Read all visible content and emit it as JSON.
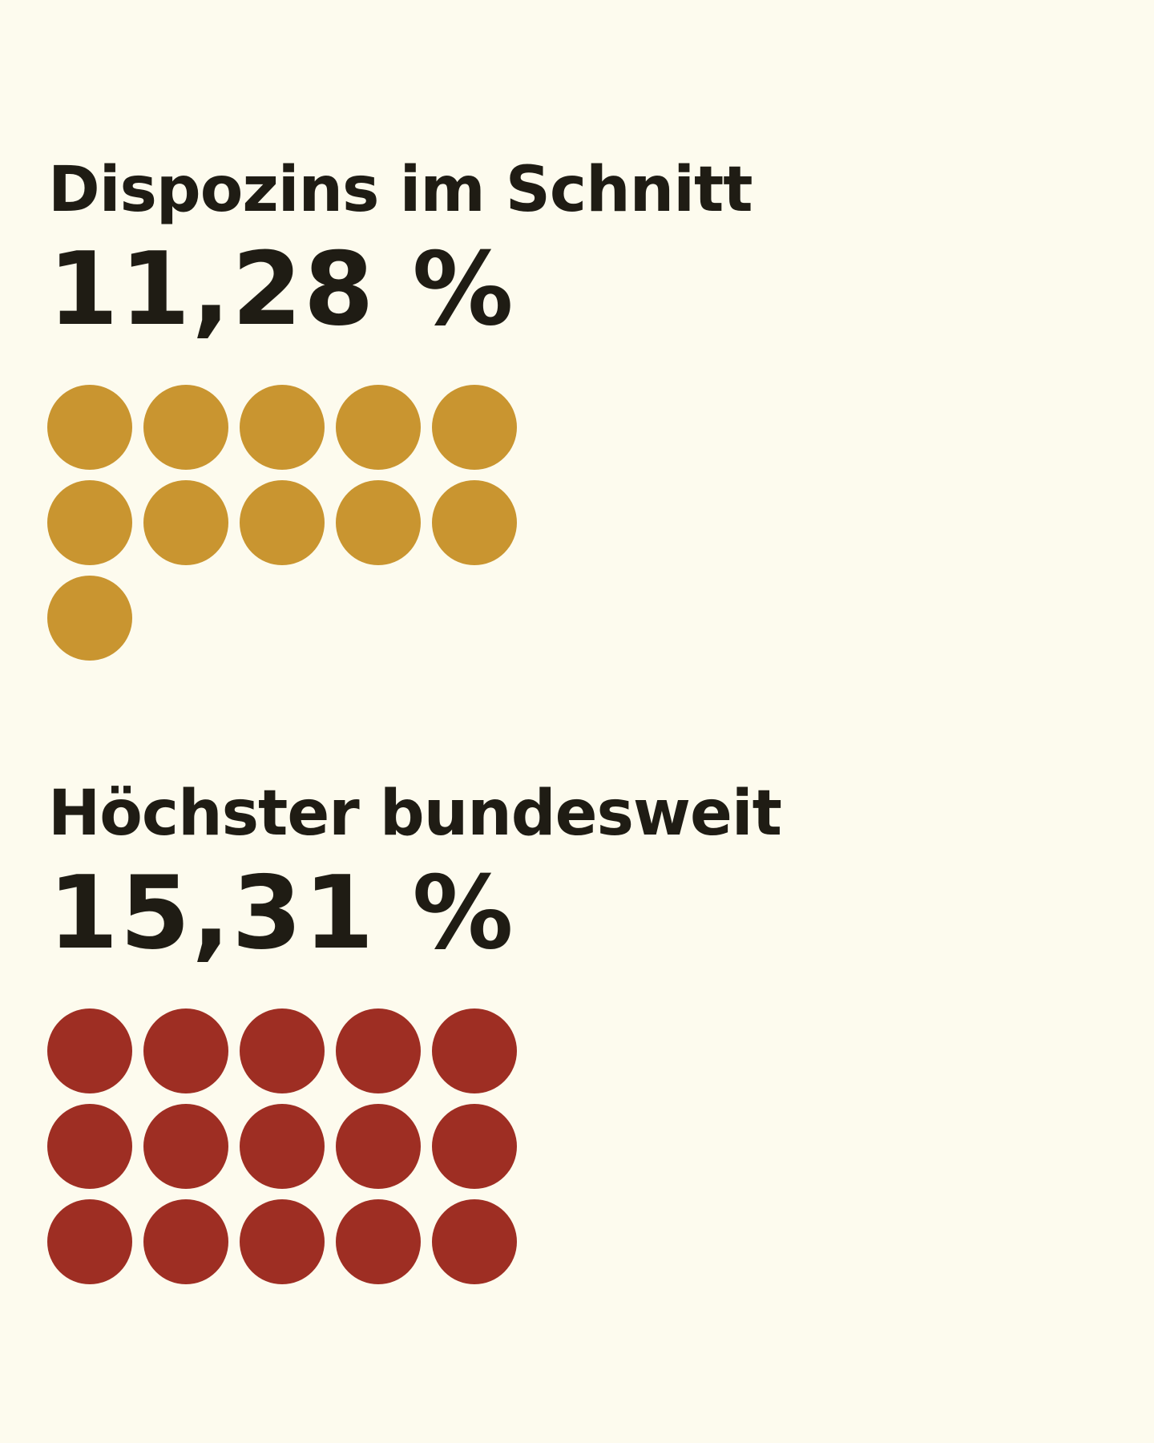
{
  "chart_data": [
    {
      "type": "pictograph",
      "title": "Dispozins im Schnitt",
      "value_label": "11,28 %",
      "value": 11.28,
      "unit": "%",
      "dot_count": 11,
      "color": "#c99530"
    },
    {
      "type": "pictograph",
      "title": "Höchster bundesweit",
      "value_label": "15,31 %",
      "value": 15.31,
      "unit": "%",
      "dot_count": 15,
      "color": "#9e2e23"
    }
  ]
}
